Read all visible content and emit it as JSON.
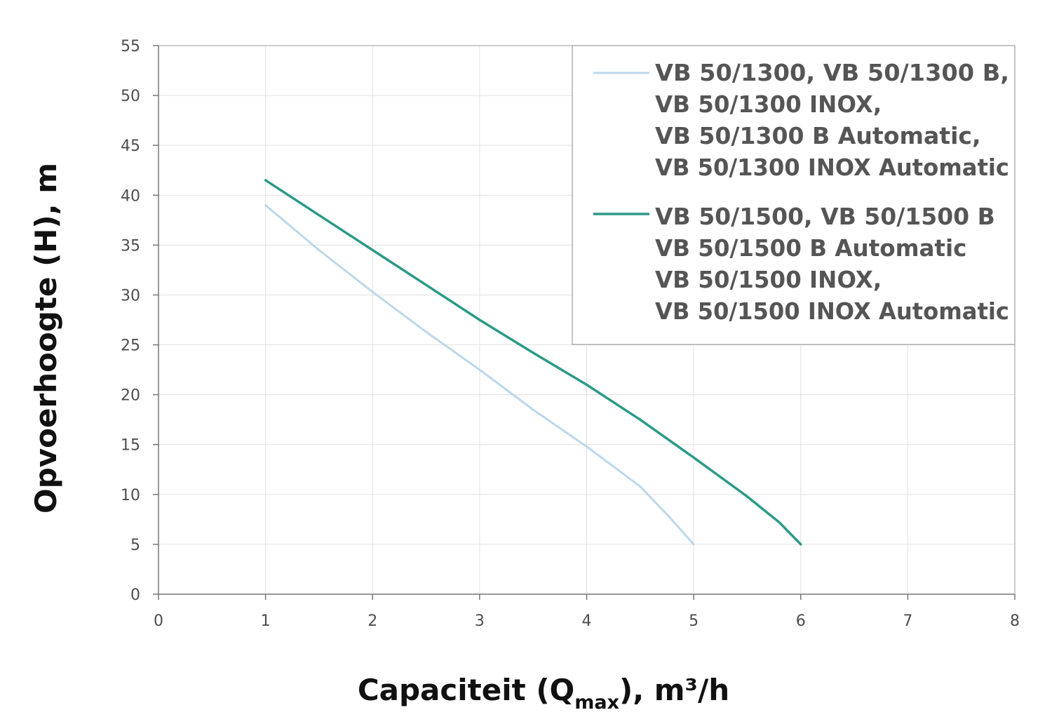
{
  "chart_data": {
    "type": "line",
    "xlabel": {
      "main": "Capaciteit (Q",
      "sub": "max",
      "tail": "), m³/h"
    },
    "ylabel": "Opvoerhoogte (H), m",
    "xlim": [
      0,
      8
    ],
    "ylim": [
      0,
      55
    ],
    "xticks": [
      "0",
      "1",
      "2",
      "3",
      "4",
      "5",
      "6",
      "7",
      "8"
    ],
    "yticks": [
      "0",
      "5",
      "10",
      "15",
      "20",
      "25",
      "30",
      "35",
      "40",
      "45",
      "50",
      "55"
    ],
    "grid": true,
    "legend_position": "top-right",
    "series": [
      {
        "name_lines": [
          "VB 50/1300, VB 50/1300 B,",
          "VB 50/1300 INOX,",
          "VB 50/1300 B Automatic,",
          "VB 50/1300 INOX Automatic"
        ],
        "color": "#bcd7ea",
        "x": [
          1,
          1.5,
          2,
          2.5,
          3,
          3.5,
          4,
          4.5,
          4.75,
          4.9,
          5
        ],
        "y": [
          39,
          34.5,
          30.3,
          26.3,
          22.5,
          18.5,
          14.8,
          10.8,
          8,
          6.2,
          5
        ]
      },
      {
        "name_lines": [
          "VB 50/1500, VB 50/1500 B",
          "VB 50/1500 B Automatic",
          "VB 50/1500 INOX,",
          "VB 50/1500 INOX Automatic"
        ],
        "color": "#2a9a86",
        "x": [
          1,
          1.5,
          2,
          2.5,
          3,
          3.5,
          4,
          4.5,
          5,
          5.5,
          5.8,
          6
        ],
        "y": [
          41.5,
          38,
          34.5,
          31,
          27.5,
          24.2,
          21,
          17.5,
          13.7,
          9.8,
          7.2,
          5
        ]
      }
    ]
  }
}
